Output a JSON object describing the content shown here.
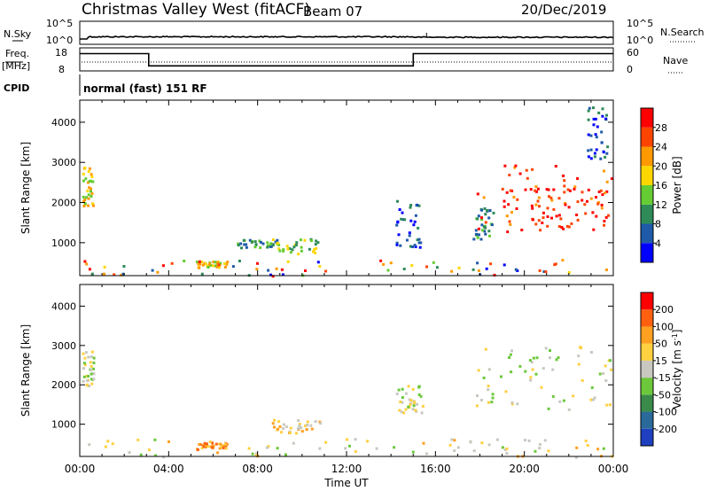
{
  "header": {
    "title": "Christmas Valley West (fitACF)",
    "beam": "Beam 07",
    "date": "20/Dec/2019"
  },
  "noise_panel": {
    "left_label": "N.Sky",
    "right_label": "N.Search",
    "left_ticks": [
      "10^5",
      "10^0"
    ],
    "right_ticks": [
      "10^5",
      "10^0"
    ]
  },
  "freq_panel": {
    "left_label_1": "Freq.",
    "left_label_2": "[MHz]",
    "right_label": "Nave",
    "left_ticks": [
      "18",
      "8"
    ],
    "right_ticks": [
      "60",
      "0"
    ],
    "freq_steps": [
      {
        "t": 0.0,
        "f": 15.5
      },
      {
        "t": 3.1,
        "f": 15.5
      },
      {
        "t": 3.1,
        "f": 10.2
      },
      {
        "t": 15.0,
        "f": 10.2
      },
      {
        "t": 15.0,
        "f": 15.5
      },
      {
        "t": 24.0,
        "f": 15.5
      }
    ]
  },
  "cpid": {
    "label": "CPID",
    "text": "normal (fast) 151 RF"
  },
  "chart_data": [
    {
      "type": "heatmap",
      "name": "power",
      "ylabel": "Slant Range [km]",
      "yticks": [
        1000,
        2000,
        3000,
        4000
      ],
      "ylim": [
        180,
        4550
      ],
      "xlim": [
        0,
        24
      ],
      "colorbar": {
        "label": "Power [dB]",
        "ticks": [
          "4",
          "8",
          "12",
          "16",
          "20",
          "24",
          "28"
        ],
        "colors": [
          "#0000ff",
          "#1e5aa8",
          "#2e8b57",
          "#66cc33",
          "#ffd700",
          "#ff9900",
          "#ff4400",
          "#ff0000"
        ]
      },
      "regions": [
        {
          "t0": 0.1,
          "t1": 0.6,
          "r0": 1900,
          "r1": 2900,
          "level": 4
        },
        {
          "t0": 6.9,
          "t1": 8.9,
          "r0": 900,
          "r1": 1100,
          "level": 2
        },
        {
          "t0": 8.6,
          "t1": 10.8,
          "r0": 750,
          "r1": 1150,
          "level": 3
        },
        {
          "t0": 5.2,
          "t1": 6.6,
          "r0": 380,
          "r1": 560,
          "level": 4
        },
        {
          "t0": 14.2,
          "t1": 15.4,
          "r0": 900,
          "r1": 2100,
          "level": 1
        },
        {
          "t0": 17.6,
          "t1": 18.6,
          "r0": 1100,
          "r1": 1900,
          "level": 2
        },
        {
          "t0": 17.8,
          "t1": 23.9,
          "r0": 1300,
          "r1": 3000,
          "level": 6
        },
        {
          "t0": 19.0,
          "t1": 23.9,
          "r0": 1500,
          "r1": 2400,
          "level": 7
        },
        {
          "t0": 22.8,
          "t1": 23.7,
          "r0": 3100,
          "r1": 4400,
          "level": 1
        },
        {
          "t0": 0.1,
          "t1": 23.9,
          "r0": 180,
          "r1": 600,
          "level": 3
        }
      ]
    },
    {
      "type": "heatmap",
      "name": "velocity",
      "ylabel": "Slant Range [km]",
      "yticks": [
        1000,
        2000,
        3000,
        4000
      ],
      "ylim": [
        180,
        4550
      ],
      "xlim": [
        0,
        24
      ],
      "colorbar": {
        "label": "Velocity [m s^-1]",
        "ticks": [
          "200",
          "100",
          "50",
          "15",
          "-15",
          "-50",
          "-100",
          "-200"
        ],
        "colors": [
          "#1e3fbf",
          "#2a6a9a",
          "#3a8a4a",
          "#6cc83a",
          "#c8c8c0",
          "#ffd040",
          "#ffa020",
          "#ff6010",
          "#ff0000"
        ]
      },
      "regions": [
        {
          "t0": 0.1,
          "t1": 0.6,
          "r0": 2000,
          "r1": 2900,
          "level": 4
        },
        {
          "t0": 8.6,
          "t1": 10.8,
          "r0": 800,
          "r1": 1150,
          "level": 5
        },
        {
          "t0": 5.2,
          "t1": 6.6,
          "r0": 380,
          "r1": 560,
          "level": 6
        },
        {
          "t0": 14.2,
          "t1": 15.4,
          "r0": 1300,
          "r1": 2000,
          "level": 4
        },
        {
          "t0": 17.8,
          "t1": 23.9,
          "r0": 1400,
          "r1": 3000,
          "level": 4
        },
        {
          "t0": 0.1,
          "t1": 23.9,
          "r0": 180,
          "r1": 650,
          "level": 5
        }
      ]
    }
  ],
  "xaxis": {
    "ticks": [
      "00:00",
      "04:00",
      "08:00",
      "12:00",
      "16:00",
      "20:00",
      "00:00"
    ],
    "label": "Time UT"
  }
}
